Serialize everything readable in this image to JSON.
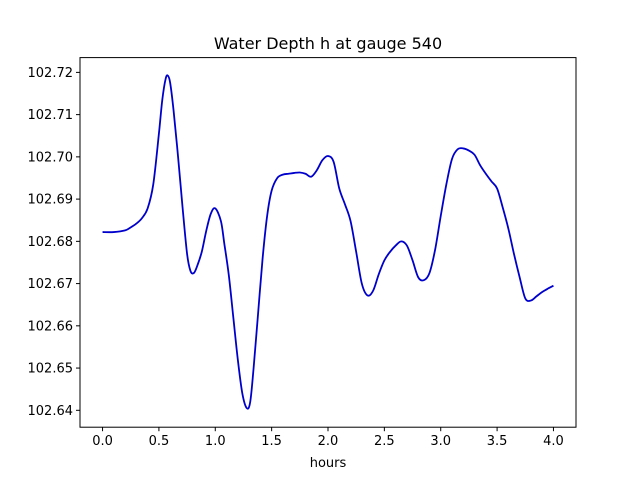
{
  "chart_data": {
    "type": "line",
    "title": "Water Depth h at gauge 540",
    "xlabel": "hours",
    "ylabel": "",
    "xlim": [
      -0.2,
      4.2
    ],
    "ylim": [
      102.636,
      102.7235
    ],
    "xticks": [
      0.0,
      0.5,
      1.0,
      1.5,
      2.0,
      2.5,
      3.0,
      3.5,
      4.0
    ],
    "xtick_labels": [
      "0.0",
      "0.5",
      "1.0",
      "1.5",
      "2.0",
      "2.5",
      "3.0",
      "3.5",
      "4.0"
    ],
    "yticks": [
      102.64,
      102.65,
      102.66,
      102.67,
      102.68,
      102.69,
      102.7,
      102.71,
      102.72
    ],
    "ytick_labels": [
      "102.64",
      "102.65",
      "102.66",
      "102.67",
      "102.68",
      "102.69",
      "102.70",
      "102.71",
      "102.72"
    ],
    "grid": false,
    "legend": "none",
    "series": [
      {
        "color": "#0000cc",
        "x": [
          0.0,
          0.1,
          0.2,
          0.25,
          0.3,
          0.35,
          0.4,
          0.45,
          0.5,
          0.53,
          0.56,
          0.58,
          0.6,
          0.63,
          0.67,
          0.71,
          0.75,
          0.78,
          0.81,
          0.84,
          0.88,
          0.92,
          0.96,
          1.0,
          1.05,
          1.08,
          1.12,
          1.16,
          1.2,
          1.24,
          1.28,
          1.31,
          1.34,
          1.38,
          1.42,
          1.46,
          1.5,
          1.55,
          1.6,
          1.65,
          1.7,
          1.75,
          1.8,
          1.85,
          1.9,
          1.95,
          2.0,
          2.05,
          2.1,
          2.15,
          2.2,
          2.25,
          2.3,
          2.35,
          2.4,
          2.45,
          2.5,
          2.55,
          2.6,
          2.65,
          2.7,
          2.75,
          2.8,
          2.85,
          2.9,
          2.95,
          3.0,
          3.05,
          3.1,
          3.15,
          3.2,
          3.25,
          3.3,
          3.35,
          3.4,
          3.45,
          3.5,
          3.55,
          3.6,
          3.65,
          3.7,
          3.75,
          3.8,
          3.85,
          3.9,
          3.95,
          4.0
        ],
        "y": [
          102.6822,
          102.6822,
          102.6826,
          102.6833,
          102.6842,
          102.6855,
          102.6878,
          102.6935,
          102.7055,
          102.7135,
          102.7185,
          102.7192,
          102.7175,
          102.711,
          102.7,
          102.688,
          102.677,
          102.673,
          102.6725,
          102.6742,
          102.6775,
          102.6825,
          102.6865,
          102.6878,
          102.6848,
          102.6795,
          102.672,
          102.662,
          102.652,
          102.644,
          102.6405,
          102.642,
          102.65,
          102.663,
          102.676,
          102.686,
          102.692,
          102.695,
          102.6958,
          102.696,
          102.6962,
          102.6963,
          102.696,
          102.6953,
          102.6968,
          102.6992,
          102.7002,
          102.6988,
          102.6925,
          102.6888,
          102.6848,
          102.6775,
          102.67,
          102.6672,
          102.6683,
          102.6722,
          102.6755,
          102.6775,
          102.679,
          102.68,
          102.679,
          102.6755,
          102.6715,
          102.6708,
          102.6725,
          102.678,
          102.686,
          102.6935,
          102.6995,
          102.7018,
          102.702,
          102.7015,
          102.7005,
          102.698,
          102.696,
          102.6942,
          102.6925,
          102.688,
          102.683,
          102.677,
          102.6715,
          102.6665,
          102.666,
          102.667,
          102.668,
          102.6688,
          102.6695
        ]
      }
    ]
  }
}
